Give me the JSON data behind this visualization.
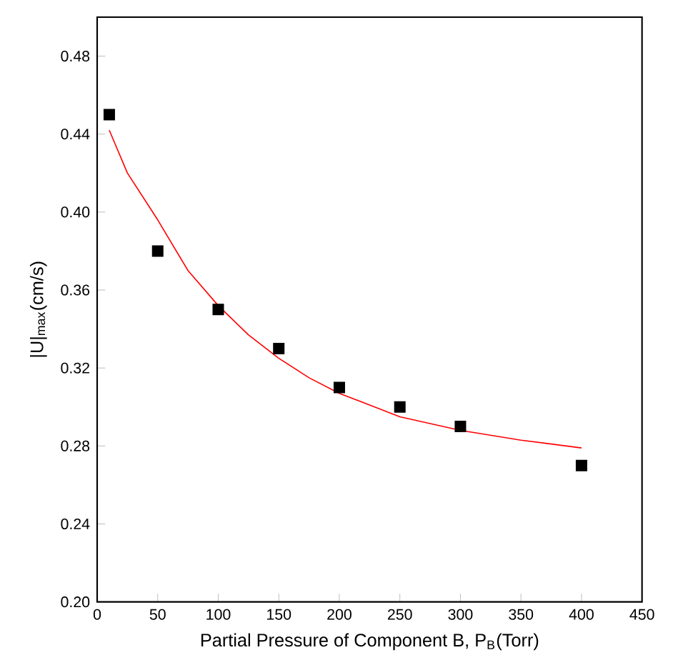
{
  "chart_data": {
    "type": "scatter",
    "xlabel": "Partial Pressure of Component B, P$_{B}$(Torr)",
    "ylabel": "|U|$_{max}$(cm/s)",
    "xlim": [
      0,
      450
    ],
    "ylim": [
      0.2,
      0.5
    ],
    "xticks": [
      0,
      50,
      100,
      150,
      200,
      250,
      300,
      350,
      400,
      450
    ],
    "yticks": [
      {
        "value": 0.2,
        "label": "0.20"
      },
      0.24,
      0.28,
      0.32,
      0.36,
      {
        "value": 0.4,
        "label": "0.40"
      },
      0.44,
      0.48
    ],
    "grid": false,
    "series": [
      {
        "marker": "square",
        "color": "#000000",
        "x": [
          10,
          50,
          100,
          150,
          200,
          250,
          300,
          400
        ],
        "values": [
          0.45,
          0.38,
          0.35,
          0.33,
          0.31,
          0.3,
          0.29,
          0.27
        ]
      },
      {
        "type": "line",
        "marker": "none",
        "line_style": "solid",
        "color": "#ff0000",
        "x": [
          10,
          25,
          50,
          75,
          100,
          125,
          150,
          175,
          200,
          250,
          300,
          350,
          400
        ],
        "values": [
          0.442,
          0.42,
          0.396,
          0.37,
          0.352,
          0.337,
          0.325,
          0.315,
          0.307,
          0.295,
          0.288,
          0.283,
          0.279
        ]
      }
    ]
  }
}
